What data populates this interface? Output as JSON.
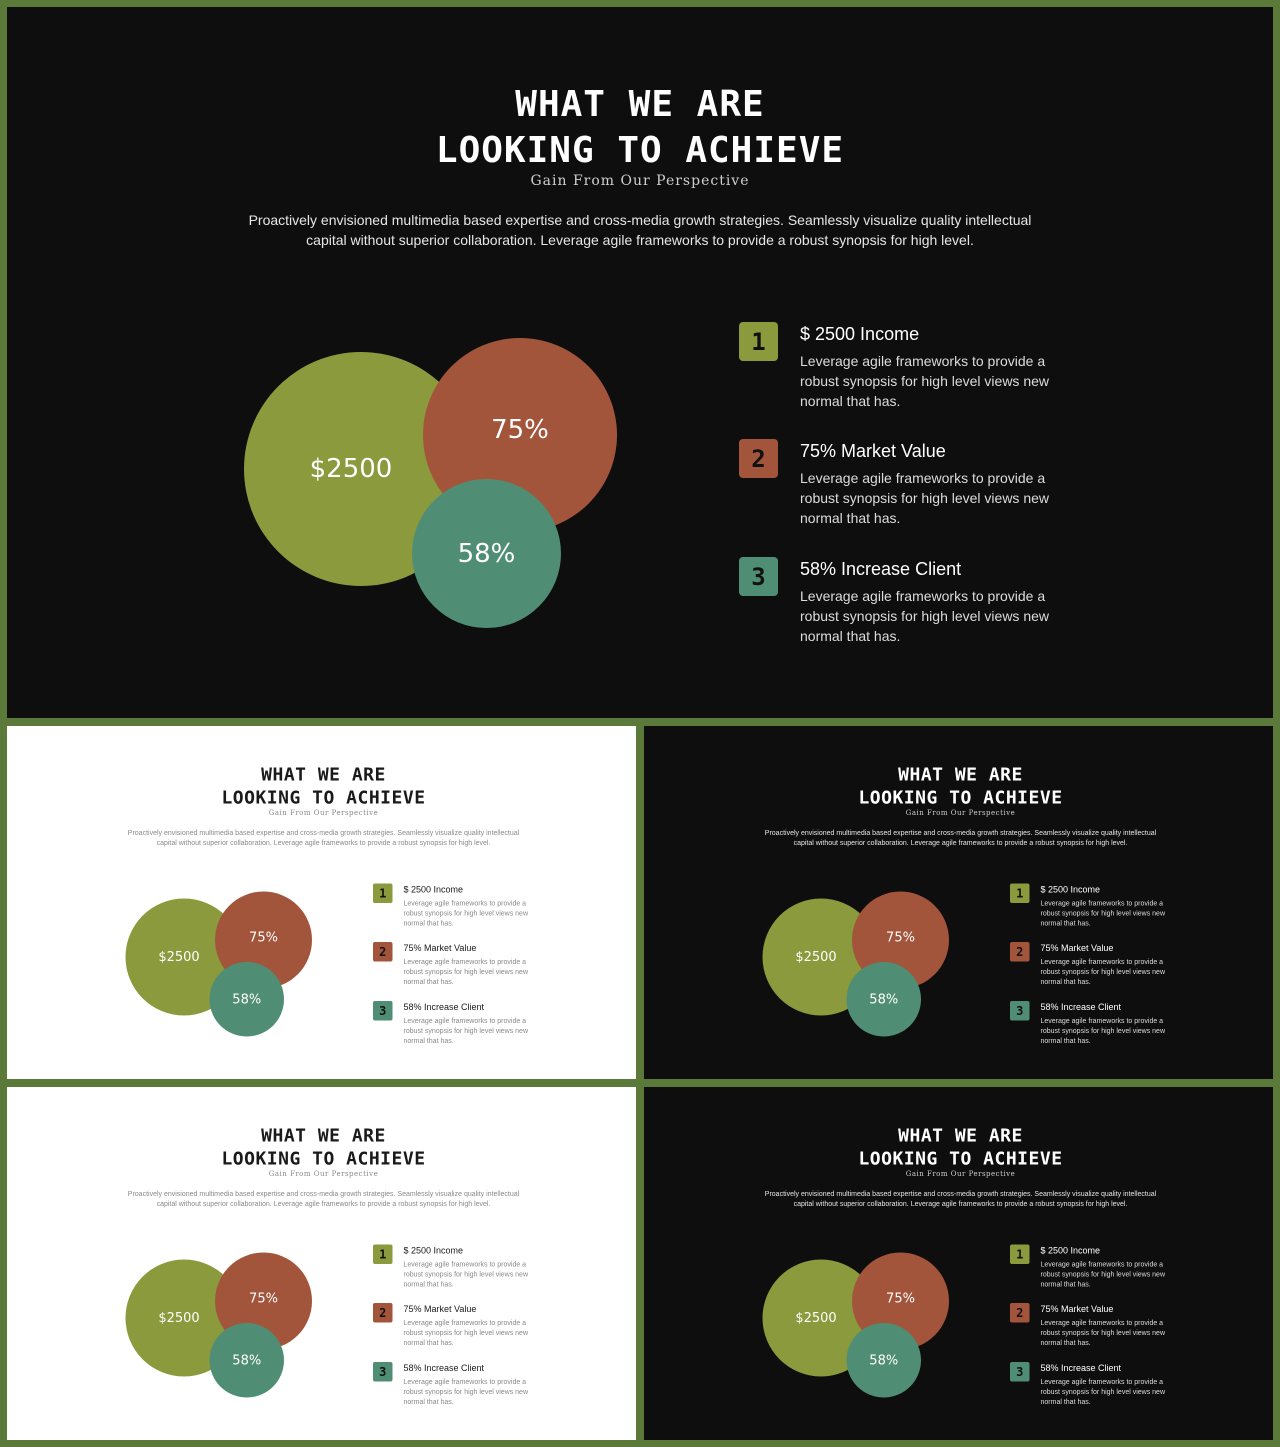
{
  "slide": {
    "title_line1": "WHAT WE ARE",
    "title_line2": "LOOKING TO ACHIEVE",
    "subtitle": "Gain From Our Perspective",
    "description": "Proactively envisioned multimedia based expertise and cross-media growth strategies. Seamlessly visualize quality intellectual capital without superior collaboration. Leverage agile frameworks to provide a robust synopsis for high level.",
    "circles": [
      {
        "label": "$2500",
        "color": "#8a9a3c"
      },
      {
        "label": "75%",
        "color": "#a3553c"
      },
      {
        "label": "58%",
        "color": "#4f8e75"
      }
    ],
    "items": [
      {
        "number": "1",
        "title": "$ 2500 Income",
        "text": "Leverage agile frameworks to provide a robust synopsis for high level views new normal that has.",
        "color": "#8a9a3c"
      },
      {
        "number": "2",
        "title": "75% Market Value",
        "text": "Leverage agile frameworks to provide a robust synopsis for high level views new normal that has.",
        "color": "#a3553c"
      },
      {
        "number": "3",
        "title": "58% Increase Client",
        "text": "Leverage agile frameworks to provide a robust synopsis for high level views new normal that has.",
        "color": "#4f8e75"
      }
    ]
  },
  "theme": {
    "frame_color": "#5b7a3a",
    "dark_background": "#0e0e0e",
    "light_background": "#ffffff"
  }
}
